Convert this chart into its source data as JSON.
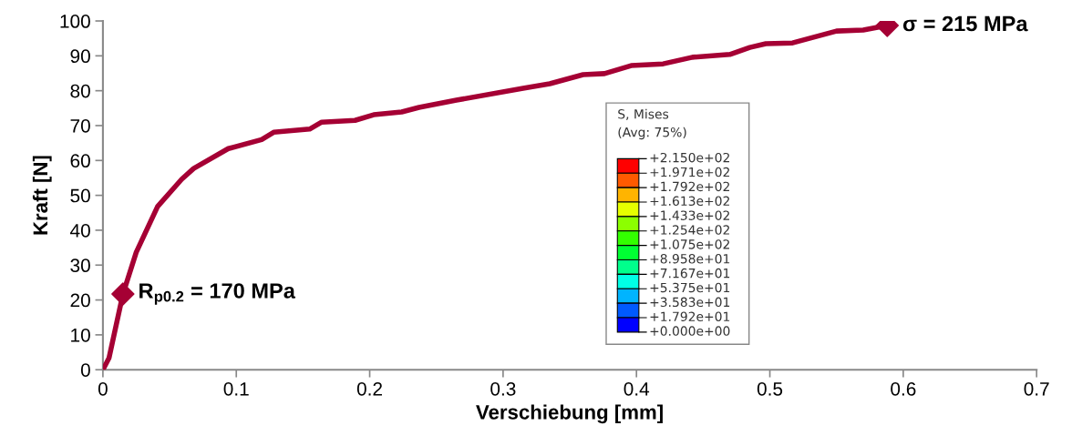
{
  "chart_data": {
    "type": "line",
    "xlabel": "Verschiebung [mm]",
    "ylabel": "Kraft [N]",
    "xlim": [
      0,
      0.7
    ],
    "xticks": [
      0,
      0.1,
      0.2,
      0.3,
      0.4,
      0.5,
      0.6,
      0.7
    ],
    "ylim": [
      0,
      100
    ],
    "yticks": [
      0,
      10,
      20,
      30,
      40,
      50,
      60,
      70,
      80,
      90,
      100
    ],
    "grid": false,
    "legend": false,
    "series": [
      {
        "color": "#a50034",
        "marker": "none",
        "x": [
          0,
          0.0046,
          0.015,
          0.025,
          0.041,
          0.059,
          0.068,
          0.094,
          0.119,
          0.128,
          0.155,
          0.164,
          0.189,
          0.203,
          0.224,
          0.237,
          0.265,
          0.315,
          0.335,
          0.36,
          0.376,
          0.396,
          0.42,
          0.442,
          0.47,
          0.485,
          0.497,
          0.517,
          0.55,
          0.57,
          0.588
        ],
        "values": [
          0,
          3.4,
          21.7,
          33.7,
          46.8,
          54.6,
          57.7,
          63.4,
          66,
          68.1,
          69,
          71,
          71.5,
          73.1,
          73.9,
          75.2,
          77.3,
          80.7,
          82,
          84.6,
          84.9,
          87.2,
          87.7,
          89.6,
          90.4,
          92.4,
          93.5,
          93.7,
          97.1,
          97.4,
          98.7
        ]
      },
      {
        "type": "scatter",
        "color": "#a50034",
        "marker": "diamond",
        "x": [
          0.015,
          0.588
        ],
        "values": [
          21.7,
          98.7
        ]
      }
    ],
    "annotations": [
      {
        "text": "R$_{p0.2}$ = 170 MPa",
        "x": 0.015,
        "y": 21.7
      },
      {
        "text": "σ = 215 MPa",
        "x": 0.588,
        "y": 98.7
      },
      "S, Mises",
      "(Avg: 75%)",
      "+2.150e+02",
      "+1.971e+02",
      "+1.792e+02",
      "+1.613e+02",
      "+1.433e+02",
      "+1.254e+02",
      "+1.075e+02",
      "+8.958e+01",
      "+7.167e+01",
      "+5.375e+01",
      "+3.583e+01",
      "+1.792e+01",
      "+0.000e+00"
    ]
  }
}
